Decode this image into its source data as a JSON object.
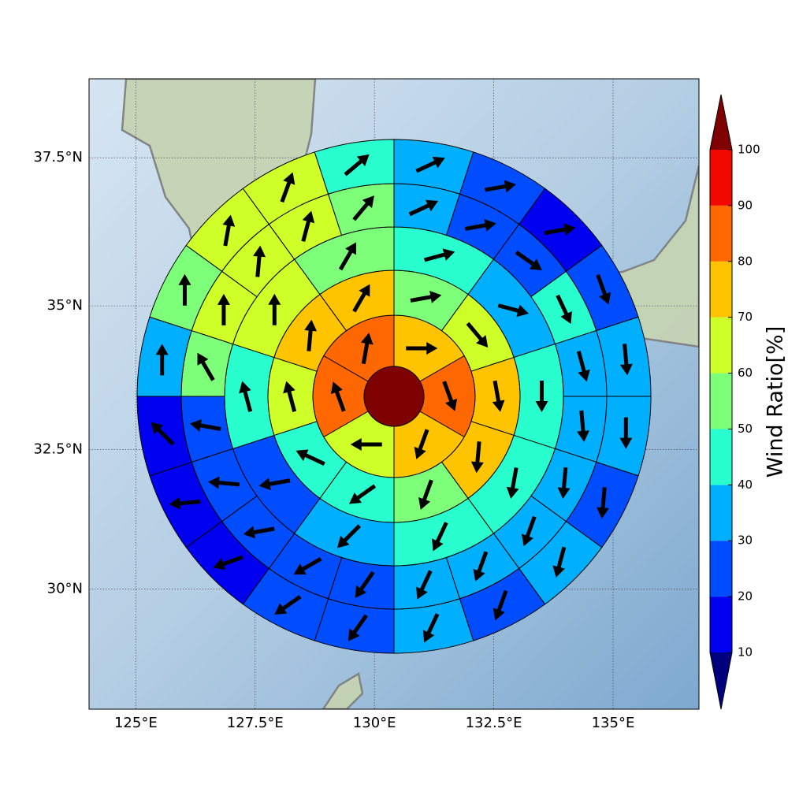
{
  "chart_data": {
    "type": "polar_sector_map",
    "projection": "mercator",
    "xlim": [
      124.02,
      136.8
    ],
    "ylim": [
      27.8,
      38.8
    ],
    "xticks": [
      {
        "value": 125,
        "label": "125°E"
      },
      {
        "value": 127.5,
        "label": "127.5°E"
      },
      {
        "value": 130,
        "label": "130°E"
      },
      {
        "value": 132.5,
        "label": "132.5°E"
      },
      {
        "value": 135,
        "label": "135°E"
      }
    ],
    "yticks": [
      {
        "value": 30,
        "label": "30°N"
      },
      {
        "value": 32.5,
        "label": "32.5°N"
      },
      {
        "value": 35,
        "label": "35°N"
      },
      {
        "value": 37.5,
        "label": "37.5°N"
      }
    ],
    "grid": true,
    "colorbar": {
      "label": "Wind Ratio[%]",
      "levels": [
        10,
        20,
        30,
        40,
        50,
        60,
        70,
        80,
        90,
        100
      ],
      "colors": [
        "#00007f",
        "#0000f0",
        "#004cff",
        "#00b0ff",
        "#29ffce",
        "#7dff7a",
        "#ceff29",
        "#ffc400",
        "#ff6800",
        "#f10800",
        "#7f0000"
      ],
      "extend": "both"
    },
    "center_value": 105,
    "rings": [
      {
        "values": [
          75,
          85,
          75,
          65,
          85,
          85
        ],
        "directions": [
          90,
          160,
          200,
          270,
          340,
          10
        ]
      },
      {
        "values": [
          55,
          65,
          75,
          75,
          55,
          45,
          45,
          65,
          75,
          75
        ],
        "directions": [
          80,
          140,
          170,
          185,
          200,
          235,
          295,
          345,
          5,
          30
        ]
      },
      {
        "values": [
          45,
          35,
          45,
          45,
          45,
          35,
          25,
          45,
          65,
          55
        ],
        "directions": [
          75,
          105,
          180,
          190,
          205,
          225,
          260,
          345,
          0,
          30
        ]
      },
      {
        "values": [
          35,
          25,
          25,
          45,
          35,
          35,
          35,
          35,
          35,
          35,
          25,
          25,
          25,
          25,
          25,
          55,
          65,
          65,
          65,
          55
        ],
        "directions": [
          65,
          80,
          125,
          155,
          165,
          175,
          185,
          200,
          200,
          205,
          215,
          240,
          260,
          275,
          280,
          330,
          0,
          5,
          15,
          40
        ]
      },
      {
        "values": [
          35,
          25,
          15,
          25,
          35,
          35,
          25,
          35,
          25,
          35,
          25,
          25,
          15,
          15,
          15,
          35,
          55,
          65,
          65,
          45
        ],
        "directions": [
          65,
          80,
          80,
          160,
          175,
          180,
          185,
          195,
          200,
          205,
          215,
          235,
          250,
          265,
          315,
          0,
          0,
          10,
          20,
          50
        ]
      }
    ]
  }
}
